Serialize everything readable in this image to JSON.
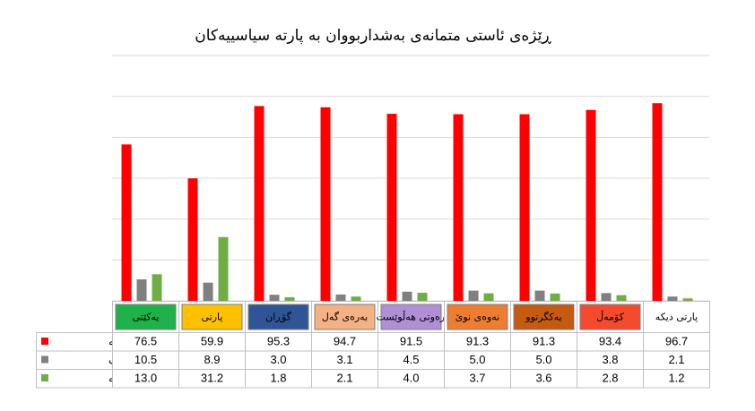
{
  "chart_data": {
    "type": "bar",
    "title": "ڕێژەی ئاستی متمانەی بەشداربووان بە پارتە سیاسییەکان",
    "categories": [
      "یەکێتی",
      "پارتی",
      "گۆڕان",
      "بەرەی گەل",
      "ڕەوتی هەڵوێست",
      "نەوەی نوێ",
      "یەکگرتوو",
      "کۆمەڵ",
      "پارتی دیکە"
    ],
    "category_colors": [
      "#1fb24a",
      "#ffc000",
      "#2f5597",
      "#f4b183",
      "#b18fd6",
      "#ed7d31",
      "#c55a11",
      "#f44a2e",
      "#ffffff"
    ],
    "category_text_colors": [
      "#000000",
      "#000000",
      "#000000",
      "#000000",
      "#000000",
      "#000000",
      "#000000",
      "#000000",
      "#000000"
    ],
    "series": [
      {
        "name": "متمانەم نییە",
        "color": "#ff0000",
        "values": [
          76.5,
          59.9,
          95.3,
          94.7,
          91.5,
          91.3,
          91.3,
          93.4,
          96.7
        ]
      },
      {
        "name": "ئارادیمەک",
        "color": "#808080",
        "values": [
          10.5,
          8.9,
          3.0,
          3.1,
          4.5,
          5.0,
          5.0,
          3.8,
          2.1
        ]
      },
      {
        "name": "متمانەم هەیە",
        "color": "#70ad47",
        "values": [
          13.0,
          31.2,
          1.8,
          2.1,
          4.0,
          3.7,
          3.6,
          2.8,
          1.2
        ]
      }
    ],
    "ylim": [
      0,
      120
    ],
    "grid": true,
    "legend": "data-table"
  }
}
